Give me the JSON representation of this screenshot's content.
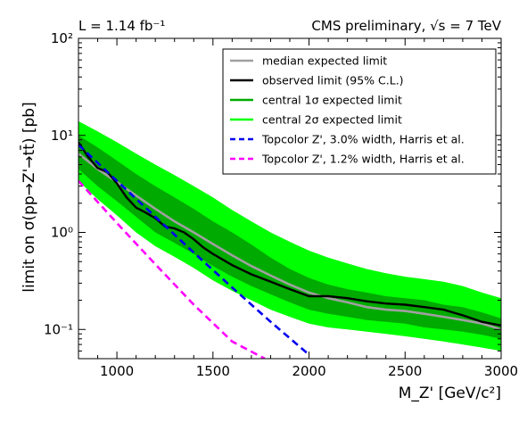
{
  "chart_data": {
    "type": "line",
    "x_axis": {
      "label": "M_Z' [GeV/c²]",
      "range": [
        800,
        3000
      ],
      "ticks": [
        "1000",
        "1500",
        "2000",
        "2500",
        "3000"
      ],
      "tick_values": [
        1000,
        1500,
        2000,
        2500,
        3000
      ],
      "scale": "linear"
    },
    "y_axis": {
      "label": "limit on σ(pp→Z'→tt̄) [pb]",
      "range": [
        0.05,
        100
      ],
      "scale": "log",
      "ticks": [
        "10⁻¹",
        "10⁰",
        "10¹",
        "10²"
      ],
      "tick_values": [
        0.1,
        1,
        10,
        100
      ]
    },
    "header_left": "L = 1.14 fb⁻¹",
    "header_right": "CMS preliminary, √s = 7 TeV",
    "legend_position": "upper-right",
    "x": [
      800,
      900,
      1000,
      1100,
      1200,
      1300,
      1400,
      1500,
      1600,
      1700,
      1800,
      1900,
      2000,
      2100,
      2200,
      2300,
      2400,
      2500,
      2600,
      2700,
      2800,
      2900,
      3000
    ],
    "bands": [
      {
        "name": "central 2σ expected limit",
        "color": "#00ff00",
        "lower": [
          3.4,
          2.2,
          1.5,
          1.0,
          0.72,
          0.56,
          0.43,
          0.32,
          0.25,
          0.2,
          0.16,
          0.135,
          0.115,
          0.105,
          0.1,
          0.095,
          0.09,
          0.085,
          0.08,
          0.075,
          0.07,
          0.065,
          0.06
        ],
        "upper": [
          14,
          11,
          8.5,
          6.5,
          5.0,
          3.9,
          3.0,
          2.3,
          1.7,
          1.3,
          1.0,
          0.8,
          0.65,
          0.55,
          0.48,
          0.42,
          0.38,
          0.35,
          0.33,
          0.31,
          0.28,
          0.24,
          0.21
        ]
      },
      {
        "name": "central 1σ expected limit",
        "color": "#00aa00",
        "lower": [
          4.5,
          3.0,
          2.1,
          1.45,
          1.0,
          0.78,
          0.6,
          0.45,
          0.35,
          0.28,
          0.23,
          0.19,
          0.16,
          0.145,
          0.135,
          0.125,
          0.12,
          0.115,
          0.105,
          0.1,
          0.095,
          0.088,
          0.08
        ],
        "upper": [
          10,
          7.5,
          5.5,
          4.0,
          3.0,
          2.3,
          1.75,
          1.3,
          1.0,
          0.75,
          0.55,
          0.42,
          0.34,
          0.29,
          0.26,
          0.24,
          0.22,
          0.21,
          0.2,
          0.18,
          0.17,
          0.15,
          0.13
        ]
      }
    ],
    "series": [
      {
        "name": "median expected limit",
        "color": "#a0a0a0",
        "dash": "solid",
        "values": [
          6.5,
          4.5,
          3.3,
          2.4,
          1.75,
          1.3,
          1.0,
          0.76,
          0.58,
          0.45,
          0.36,
          0.29,
          0.24,
          0.21,
          0.19,
          0.17,
          0.16,
          0.155,
          0.145,
          0.135,
          0.125,
          0.115,
          0.1
        ]
      },
      {
        "name": "observed limit (95% C.L.)",
        "color": "#000000",
        "dash": "solid",
        "x": [
          800,
          850,
          900,
          950,
          1000,
          1050,
          1100,
          1150,
          1200,
          1250,
          1300,
          1350,
          1400,
          1450,
          1500,
          1600,
          1700,
          1800,
          1900,
          2000,
          2100,
          2200,
          2300,
          2400,
          2500,
          2600,
          2700,
          2800,
          2900,
          3000
        ],
        "values": [
          8.5,
          6.0,
          4.6,
          4.2,
          3.2,
          2.3,
          1.8,
          1.6,
          1.4,
          1.15,
          1.1,
          1.0,
          0.85,
          0.7,
          0.6,
          0.46,
          0.37,
          0.31,
          0.26,
          0.22,
          0.22,
          0.21,
          0.195,
          0.185,
          0.18,
          0.17,
          0.16,
          0.14,
          0.12,
          0.11
        ]
      },
      {
        "name": "Topcolor Z', 3.0% width, Harris et al.",
        "color": "#0000ee",
        "dash": "dashed",
        "x": [
          800,
          1000,
          1200,
          1400,
          1600,
          1800,
          2000
        ],
        "values": [
          8.0,
          3.4,
          1.45,
          0.62,
          0.27,
          0.12,
          0.055
        ]
      },
      {
        "name": "Topcolor Z', 1.2% width, Harris et al.",
        "color": "#ff00ff",
        "dash": "dashed",
        "x": [
          800,
          1000,
          1200,
          1400,
          1600,
          1770
        ],
        "values": [
          3.4,
          1.25,
          0.47,
          0.18,
          0.075,
          0.05
        ]
      }
    ],
    "legend": [
      {
        "label": "median expected limit",
        "color": "#a0a0a0",
        "style": "solid"
      },
      {
        "label": "observed limit (95% C.L.)",
        "color": "#000000",
        "style": "solid"
      },
      {
        "label": "central 1σ expected limit",
        "color": "#00aa00",
        "style": "solid"
      },
      {
        "label": "central 2σ expected limit",
        "color": "#00ff00",
        "style": "solid"
      },
      {
        "label": "Topcolor Z', 3.0% width, Harris et al.",
        "color": "#0000ee",
        "style": "dashed"
      },
      {
        "label": "Topcolor Z', 1.2% width, Harris et al.",
        "color": "#ff00ff",
        "style": "dashed"
      }
    ]
  }
}
